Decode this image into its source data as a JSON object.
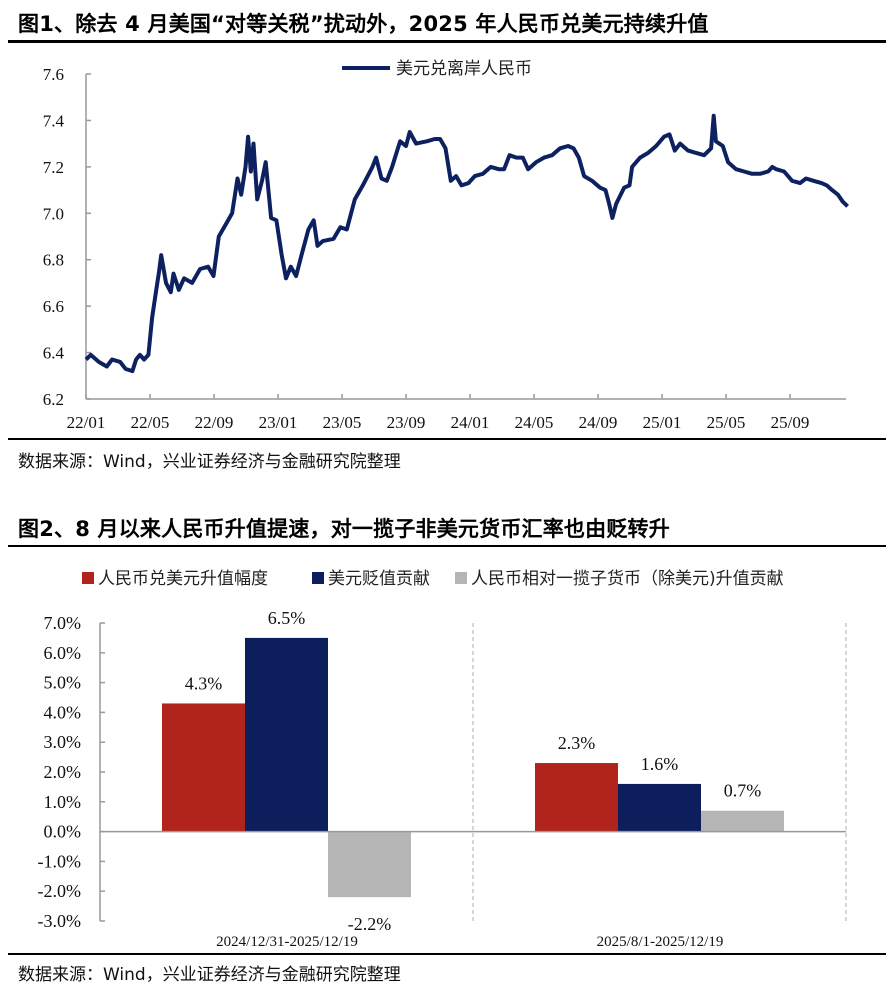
{
  "figure1": {
    "title": "图1、除去 4 月美国“对等关税”扰动外，2025 年人民币兑美元持续升值",
    "source": "数据来源：Wind，兴业证券经济与金融研究院整理"
  },
  "figure2": {
    "title": "图2、8 月以来人民币升值提速，对一揽子非美元货币汇率也由贬转升",
    "source": "数据来源：Wind，兴业证券经济与金融研究院整理"
  },
  "chart_data": [
    {
      "type": "line",
      "title": "",
      "legend": "top-center",
      "ylim": [
        6.2,
        7.6
      ],
      "yticks": [
        "6.2",
        "6.4",
        "6.6",
        "6.8",
        "7.0",
        "7.2",
        "7.4",
        "7.6"
      ],
      "xticks": [
        "22/01",
        "22/05",
        "22/09",
        "23/01",
        "23/05",
        "23/09",
        "24/01",
        "24/05",
        "24/09",
        "25/01",
        "25/05",
        "25/09"
      ],
      "grid": false,
      "series": [
        {
          "name": "美元兑离岸人民币",
          "color": "#0d2060",
          "points": [
            [
              "2022-01-01",
              6.37
            ],
            [
              "2022-01-10",
              6.39
            ],
            [
              "2022-01-25",
              6.36
            ],
            [
              "2022-02-10",
              6.34
            ],
            [
              "2022-02-20",
              6.37
            ],
            [
              "2022-03-05",
              6.36
            ],
            [
              "2022-03-15",
              6.33
            ],
            [
              "2022-03-28",
              6.32
            ],
            [
              "2022-04-05",
              6.37
            ],
            [
              "2022-04-12",
              6.39
            ],
            [
              "2022-04-20",
              6.37
            ],
            [
              "2022-04-28",
              6.39
            ],
            [
              "2022-05-05",
              6.55
            ],
            [
              "2022-05-12",
              6.66
            ],
            [
              "2022-05-18",
              6.75
            ],
            [
              "2022-05-22",
              6.82
            ],
            [
              "2022-06-01",
              6.7
            ],
            [
              "2022-06-10",
              6.66
            ],
            [
              "2022-06-15",
              6.74
            ],
            [
              "2022-06-25",
              6.67
            ],
            [
              "2022-07-05",
              6.72
            ],
            [
              "2022-07-20",
              6.7
            ],
            [
              "2022-08-05",
              6.76
            ],
            [
              "2022-08-20",
              6.77
            ],
            [
              "2022-08-30",
              6.73
            ],
            [
              "2022-09-10",
              6.9
            ],
            [
              "2022-09-25",
              6.96
            ],
            [
              "2022-10-05",
              7.0
            ],
            [
              "2022-10-15",
              7.15
            ],
            [
              "2022-10-22",
              7.08
            ],
            [
              "2022-10-30",
              7.2
            ],
            [
              "2022-11-05",
              7.33
            ],
            [
              "2022-11-10",
              7.18
            ],
            [
              "2022-11-15",
              7.3
            ],
            [
              "2022-11-22",
              7.06
            ],
            [
              "2022-12-01",
              7.14
            ],
            [
              "2022-12-08",
              7.22
            ],
            [
              "2022-12-18",
              6.98
            ],
            [
              "2022-12-28",
              6.97
            ],
            [
              "2023-01-08",
              6.82
            ],
            [
              "2023-01-16",
              6.72
            ],
            [
              "2023-01-25",
              6.77
            ],
            [
              "2023-02-05",
              6.73
            ],
            [
              "2023-02-15",
              6.82
            ],
            [
              "2023-02-28",
              6.93
            ],
            [
              "2023-03-08",
              6.97
            ],
            [
              "2023-03-15",
              6.86
            ],
            [
              "2023-03-25",
              6.88
            ],
            [
              "2023-04-15",
              6.89
            ],
            [
              "2023-04-28",
              6.94
            ],
            [
              "2023-05-10",
              6.93
            ],
            [
              "2023-05-25",
              7.06
            ],
            [
              "2023-06-10",
              7.12
            ],
            [
              "2023-06-28",
              7.2
            ],
            [
              "2023-07-05",
              7.24
            ],
            [
              "2023-07-15",
              7.15
            ],
            [
              "2023-07-25",
              7.14
            ],
            [
              "2023-08-05",
              7.2
            ],
            [
              "2023-08-20",
              7.31
            ],
            [
              "2023-09-01",
              7.29
            ],
            [
              "2023-09-08",
              7.35
            ],
            [
              "2023-09-20",
              7.3
            ],
            [
              "2023-10-10",
              7.31
            ],
            [
              "2023-10-25",
              7.32
            ],
            [
              "2023-11-05",
              7.32
            ],
            [
              "2023-11-15",
              7.28
            ],
            [
              "2023-11-25",
              7.14
            ],
            [
              "2023-12-05",
              7.16
            ],
            [
              "2023-12-15",
              7.12
            ],
            [
              "2023-12-28",
              7.13
            ],
            [
              "2024-01-10",
              7.16
            ],
            [
              "2024-01-25",
              7.17
            ],
            [
              "2024-02-10",
              7.2
            ],
            [
              "2024-02-25",
              7.19
            ],
            [
              "2024-03-05",
              7.19
            ],
            [
              "2024-03-15",
              7.25
            ],
            [
              "2024-03-28",
              7.24
            ],
            [
              "2024-04-10",
              7.24
            ],
            [
              "2024-04-20",
              7.19
            ],
            [
              "2024-05-05",
              7.22
            ],
            [
              "2024-05-20",
              7.24
            ],
            [
              "2024-06-05",
              7.25
            ],
            [
              "2024-06-20",
              7.28
            ],
            [
              "2024-07-05",
              7.29
            ],
            [
              "2024-07-15",
              7.28
            ],
            [
              "2024-07-25",
              7.24
            ],
            [
              "2024-08-05",
              7.16
            ],
            [
              "2024-08-20",
              7.14
            ],
            [
              "2024-09-05",
              7.11
            ],
            [
              "2024-09-15",
              7.1
            ],
            [
              "2024-09-22",
              7.04
            ],
            [
              "2024-09-28",
              6.98
            ],
            [
              "2024-10-05",
              7.04
            ],
            [
              "2024-10-20",
              7.11
            ],
            [
              "2024-10-30",
              7.12
            ],
            [
              "2024-11-05",
              7.2
            ],
            [
              "2024-11-20",
              7.24
            ],
            [
              "2024-12-05",
              7.26
            ],
            [
              "2024-12-20",
              7.29
            ],
            [
              "2025-01-05",
              7.33
            ],
            [
              "2025-01-15",
              7.34
            ],
            [
              "2025-01-25",
              7.27
            ],
            [
              "2025-02-05",
              7.3
            ],
            [
              "2025-02-20",
              7.27
            ],
            [
              "2025-03-05",
              7.26
            ],
            [
              "2025-03-20",
              7.25
            ],
            [
              "2025-04-03",
              7.28
            ],
            [
              "2025-04-08",
              7.42
            ],
            [
              "2025-04-12",
              7.31
            ],
            [
              "2025-04-25",
              7.29
            ],
            [
              "2025-05-05",
              7.22
            ],
            [
              "2025-05-20",
              7.19
            ],
            [
              "2025-06-05",
              7.18
            ],
            [
              "2025-06-20",
              7.17
            ],
            [
              "2025-07-05",
              7.17
            ],
            [
              "2025-07-20",
              7.18
            ],
            [
              "2025-07-28",
              7.2
            ],
            [
              "2025-08-05",
              7.19
            ],
            [
              "2025-08-20",
              7.18
            ],
            [
              "2025-09-05",
              7.14
            ],
            [
              "2025-09-20",
              7.13
            ],
            [
              "2025-10-01",
              7.15
            ],
            [
              "2025-10-15",
              7.14
            ],
            [
              "2025-10-30",
              7.13
            ],
            [
              "2025-11-10",
              7.12
            ],
            [
              "2025-11-20",
              7.1
            ],
            [
              "2025-12-01",
              7.08
            ],
            [
              "2025-12-10",
              7.05
            ],
            [
              "2025-12-19",
              7.03
            ]
          ]
        }
      ]
    },
    {
      "type": "bar",
      "title": "",
      "legend": "top",
      "ylim": [
        -3.0,
        7.0
      ],
      "yticks": [
        "-3.0%",
        "-2.0%",
        "-1.0%",
        "0.0%",
        "1.0%",
        "2.0%",
        "3.0%",
        "4.0%",
        "5.0%",
        "6.0%",
        "7.0%"
      ],
      "categories": [
        "2024/12/31-2025/12/19",
        "2025/8/1-2025/12/19"
      ],
      "series": [
        {
          "name": "人民币兑美元升值幅度",
          "color": "#b0241b",
          "values": [
            4.3,
            2.3
          ],
          "labels": [
            "4.3%",
            "2.3%"
          ]
        },
        {
          "name": "美元贬值贡献",
          "color": "#0c1f5c",
          "values": [
            6.5,
            1.6
          ],
          "labels": [
            "6.5%",
            "1.6%"
          ]
        },
        {
          "name": "人民币相对一揽子货币（除美元)升值贡献",
          "color": "#b5b5b5",
          "values": [
            -2.2,
            0.7
          ],
          "labels": [
            "-2.2%",
            "0.7%"
          ]
        }
      ]
    }
  ]
}
